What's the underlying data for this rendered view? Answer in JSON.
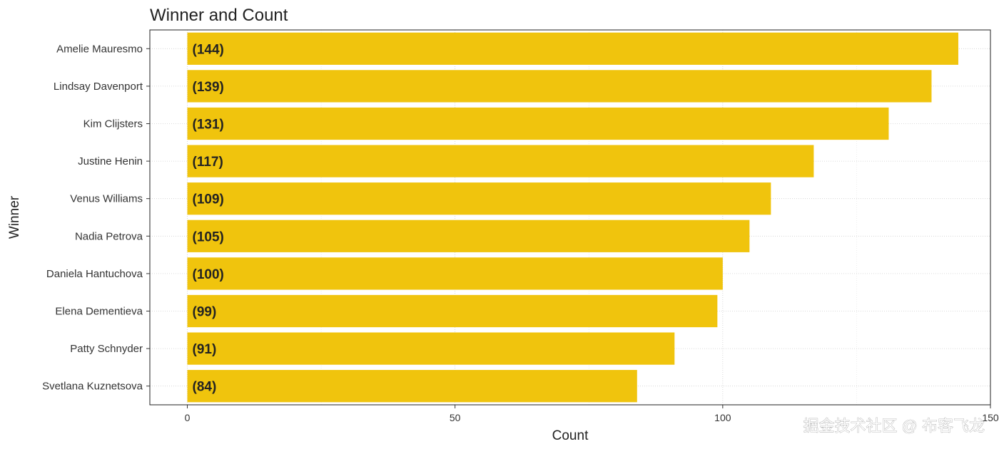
{
  "chart_data": {
    "type": "bar",
    "orientation": "horizontal",
    "title": "Winner and Count",
    "xlabel": "Count",
    "ylabel": "Winner",
    "categories": [
      "Amelie Mauresmo",
      "Lindsay Davenport",
      "Kim Clijsters",
      "Justine Henin",
      "Venus Williams",
      "Nadia Petrova",
      "Daniela Hantuchova",
      "Elena Dementieva",
      "Patty Schnyder",
      "Svetlana Kuznetsova"
    ],
    "values": [
      144,
      139,
      131,
      117,
      109,
      105,
      100,
      99,
      91,
      84
    ],
    "data_labels": [
      "(144)",
      "(139)",
      "(131)",
      "(117)",
      "(109)",
      "(105)",
      "(100)",
      "(99)",
      "(91)",
      "(84)"
    ],
    "xlim": [
      -7,
      150
    ],
    "xticks": [
      0,
      50,
      100,
      150
    ],
    "bar_color": "#f0c40d",
    "grid": true
  },
  "watermark": "掘金技术社区 @ 布客飞龙"
}
